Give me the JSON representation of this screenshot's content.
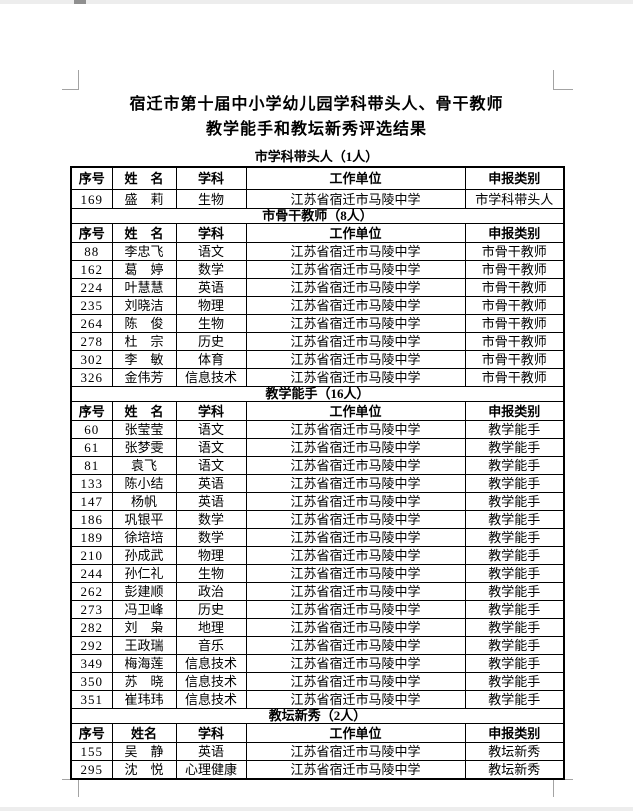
{
  "document": {
    "title_line1": "宿迁市第十届中小学幼儿园学科带头人、骨干教师",
    "title_line2": "教学能手和教坛新秀评选结果"
  },
  "table": {
    "sections": [
      {
        "title": "市学科带头人（1人）",
        "headers": [
          "序号",
          "姓　名",
          "学科",
          "工作单位",
          "申报类别"
        ],
        "rows": [
          [
            "169",
            "盛　莉",
            "生物",
            "江苏省宿迁市马陵中学",
            "市学科带头人"
          ]
        ]
      },
      {
        "title": "市骨干教师（8人）",
        "headers": [
          "序号",
          "姓　名",
          "学科",
          "工作单位",
          "申报类别"
        ],
        "rows": [
          [
            "88",
            "李忠飞",
            "语文",
            "江苏省宿迁市马陵中学",
            "市骨干教师"
          ],
          [
            "162",
            "葛　婷",
            "数学",
            "江苏省宿迁市马陵中学",
            "市骨干教师"
          ],
          [
            "224",
            "叶慧慧",
            "英语",
            "江苏省宿迁市马陵中学",
            "市骨干教师"
          ],
          [
            "235",
            "刘晓洁",
            "物理",
            "江苏省宿迁市马陵中学",
            "市骨干教师"
          ],
          [
            "264",
            "陈　俊",
            "生物",
            "江苏省宿迁市马陵中学",
            "市骨干教师"
          ],
          [
            "278",
            "杜　宗",
            "历史",
            "江苏省宿迁市马陵中学",
            "市骨干教师"
          ],
          [
            "302",
            "李　敏",
            "体育",
            "江苏省宿迁市马陵中学",
            "市骨干教师"
          ],
          [
            "326",
            "金伟芳",
            "信息技术",
            "江苏省宿迁市马陵中学",
            "市骨干教师"
          ]
        ]
      },
      {
        "title": "教学能手（16人）",
        "headers": [
          "序号",
          "姓　名",
          "学科",
          "工作单位",
          "申报类别"
        ],
        "rows": [
          [
            "60",
            "张莹莹",
            "语文",
            "江苏省宿迁市马陵中学",
            "教学能手"
          ],
          [
            "61",
            "张梦雯",
            "语文",
            "江苏省宿迁市马陵中学",
            "教学能手"
          ],
          [
            "81",
            "袁飞",
            "语文",
            "江苏省宿迁市马陵中学",
            "教学能手"
          ],
          [
            "133",
            "陈小结",
            "英语",
            "江苏省宿迁市马陵中学",
            "教学能手"
          ],
          [
            "147",
            "杨帆",
            "英语",
            "江苏省宿迁市马陵中学",
            "教学能手"
          ],
          [
            "186",
            "巩银平",
            "数学",
            "江苏省宿迁市马陵中学",
            "教学能手"
          ],
          [
            "189",
            "徐培培",
            "数学",
            "江苏省宿迁市马陵中学",
            "教学能手"
          ],
          [
            "210",
            "孙成武",
            "物理",
            "江苏省宿迁市马陵中学",
            "教学能手"
          ],
          [
            "244",
            "孙仁礼",
            "生物",
            "江苏省宿迁市马陵中学",
            "教学能手"
          ],
          [
            "262",
            "彭建顺",
            "政治",
            "江苏省宿迁市马陵中学",
            "教学能手"
          ],
          [
            "273",
            "冯卫峰",
            "历史",
            "江苏省宿迁市马陵中学",
            "教学能手"
          ],
          [
            "282",
            "刘　枭",
            "地理",
            "江苏省宿迁市马陵中学",
            "教学能手"
          ],
          [
            "292",
            "王政瑞",
            "音乐",
            "江苏省宿迁市马陵中学",
            "教学能手"
          ],
          [
            "349",
            "梅海莲",
            "信息技术",
            "江苏省宿迁市马陵中学",
            "教学能手"
          ],
          [
            "350",
            "苏　晓",
            "信息技术",
            "江苏省宿迁市马陵中学",
            "教学能手"
          ],
          [
            "351",
            "崔玮玮",
            "信息技术",
            "江苏省宿迁市马陵中学",
            "教学能手"
          ]
        ]
      },
      {
        "title": "教坛新秀（2人）",
        "headers": [
          "序号",
          "姓名",
          "学科",
          "工作单位",
          "申报类别"
        ],
        "rows": [
          [
            "155",
            "吴　静",
            "英语",
            "江苏省宿迁市马陵中学",
            "教坛新秀"
          ],
          [
            "295",
            "沈　悦",
            "心理健康",
            "江苏省宿迁市马陵中学",
            "教坛新秀"
          ]
        ]
      }
    ]
  },
  "colors": {
    "page_bg": "#ffffff",
    "chrome_bg": "#ededed",
    "scrollbar_thumb": "#8f8f8f",
    "boundary_mark": "#a3a3a3",
    "table_border": "#000000",
    "text": "#000000"
  }
}
